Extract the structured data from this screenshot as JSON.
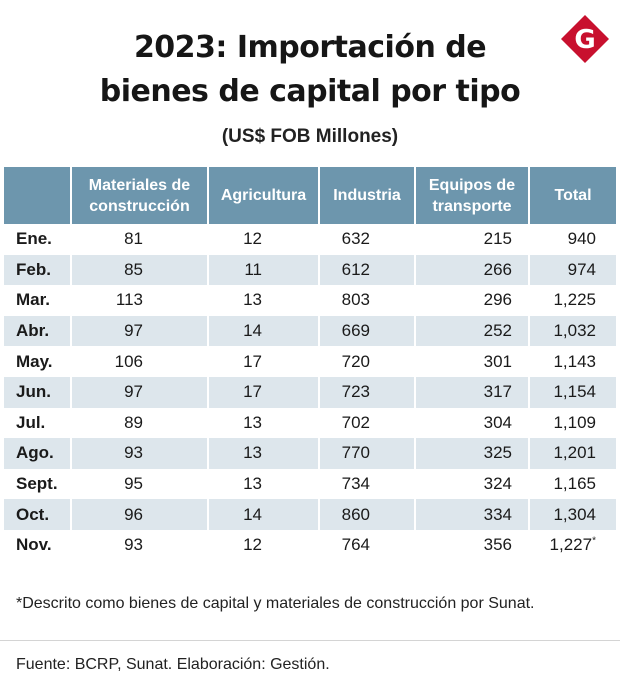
{
  "brand": {
    "logo_letter": "G",
    "logo_color": "#c8102e"
  },
  "header": {
    "title_line1": "2023: Importación de",
    "title_line2": "bienes de capital por tipo",
    "subtitle": "(US$ FOB Millones)"
  },
  "chart_data": {
    "type": "table",
    "title": "2023: Importación de bienes de capital por tipo",
    "subtitle": "(US$ FOB Millones)",
    "columns": [
      "",
      "Materiales de construcción",
      "Agricultura",
      "Industria",
      "Equipos de transporte",
      "Total"
    ],
    "rows": [
      {
        "month": "Ene.",
        "values": [
          "81",
          "12",
          "632",
          "215",
          "940"
        ]
      },
      {
        "month": "Feb.",
        "values": [
          "85",
          "11",
          "612",
          "266",
          "974"
        ]
      },
      {
        "month": "Mar.",
        "values": [
          "113",
          "13",
          "803",
          "296",
          "1,225"
        ]
      },
      {
        "month": "Abr.",
        "values": [
          "97",
          "14",
          "669",
          "252",
          "1,032"
        ]
      },
      {
        "month": "May.",
        "values": [
          "106",
          "17",
          "720",
          "301",
          "1,143"
        ]
      },
      {
        "month": "Jun.",
        "values": [
          "97",
          "17",
          "723",
          "317",
          "1,154"
        ]
      },
      {
        "month": "Jul.",
        "values": [
          "89",
          "13",
          "702",
          "304",
          "1,109"
        ]
      },
      {
        "month": "Ago.",
        "values": [
          "93",
          "13",
          "770",
          "325",
          "1,201"
        ]
      },
      {
        "month": "Sept.",
        "values": [
          "95",
          "13",
          "734",
          "324",
          "1,165"
        ]
      },
      {
        "month": "Oct.",
        "values": [
          "96",
          "14",
          "860",
          "334",
          "1,304"
        ]
      },
      {
        "month": "Nov.",
        "values": [
          "93",
          "12",
          "764",
          "356",
          "1,227"
        ],
        "total_note_mark": "*"
      }
    ],
    "colors": {
      "header_bg": "#6d96ad",
      "stripe_bg": "#dde6ec"
    }
  },
  "footnote": "*Descrito como bienes de capital y materiales de construcción por Sunat.",
  "source": "Fuente: BCRP, Sunat. Elaboración: Gestión."
}
